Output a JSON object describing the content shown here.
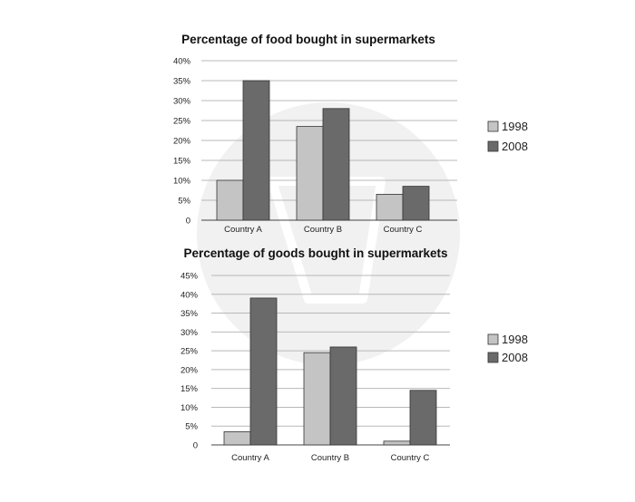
{
  "colors": {
    "1998": "#c4c4c4",
    "2008": "#6a6a6a",
    "grid": "#b8b8b8",
    "axis": "#444444",
    "watermark": "#f1f1f1"
  },
  "chart_data": [
    {
      "type": "bar",
      "title": "Percentage of food bought in supermarkets",
      "categories": [
        "Country A",
        "Country B",
        "Country C"
      ],
      "series": [
        {
          "name": "1998",
          "values": [
            10,
            23.5,
            6.5
          ]
        },
        {
          "name": "2008",
          "values": [
            35,
            28,
            8.5
          ]
        }
      ],
      "yticks": [
        "0",
        "5%",
        "10%",
        "15%",
        "20%",
        "25%",
        "30%",
        "35%",
        "40%"
      ],
      "ylim": [
        0,
        40
      ],
      "xlabel": "",
      "ylabel": "",
      "grid": true,
      "legend": "right"
    },
    {
      "type": "bar",
      "title": "Percentage of goods bought in supermarkets",
      "categories": [
        "Country A",
        "Country B",
        "Country C"
      ],
      "series": [
        {
          "name": "1998",
          "values": [
            3.5,
            24.5,
            1
          ]
        },
        {
          "name": "2008",
          "values": [
            39,
            26,
            14.5
          ]
        }
      ],
      "yticks": [
        "0",
        "5%",
        "10%",
        "15%",
        "20%",
        "25%",
        "30%",
        "35%",
        "40%",
        "45%"
      ],
      "ylim": [
        0,
        45
      ],
      "xlabel": "",
      "ylabel": "",
      "grid": true,
      "legend": "right"
    }
  ]
}
